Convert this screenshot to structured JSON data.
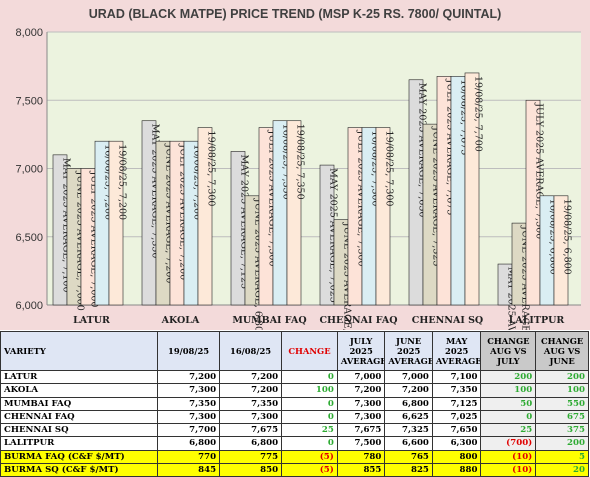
{
  "chart_data": {
    "type": "bar",
    "title": "URAD (BLACK MATPE) PRICE TREND (MSP K-25 RS. 7800/ QUINTAL)",
    "categories": [
      "LATUR",
      "AKOLA",
      "MUMBAI FAQ",
      "CHENNAI FAQ",
      "CHENNAI SQ",
      "LALITPUR"
    ],
    "ylim": [
      6000,
      8000
    ],
    "yticks": [
      "6,000",
      "6,500",
      "7,000",
      "7,500",
      "8,000"
    ],
    "ytick_values": [
      6000,
      6500,
      7000,
      7500,
      8000
    ],
    "grid": true,
    "series": [
      {
        "name": "MAY 2025 AVERAGE",
        "color": "#dcdcdc",
        "values": [
          7100,
          7350,
          7125,
          7025,
          7650,
          6300
        ]
      },
      {
        "name": "JUNE 2025 AVERAGE",
        "color": "#ddd9c4",
        "values": [
          7000,
          7200,
          6800,
          6625,
          7325,
          6600
        ]
      },
      {
        "name": "JULY 2025 AVERAGE",
        "color": "#fde3d8",
        "values": [
          7000,
          7200,
          7300,
          7300,
          7675,
          7500
        ]
      },
      {
        "name": "16/08/25",
        "color": "#daeef3",
        "values": [
          7200,
          7200,
          7350,
          7300,
          7675,
          6800
        ]
      },
      {
        "name": "19/08/25",
        "color": "#fde9d9",
        "values": [
          7200,
          7300,
          7350,
          7300,
          7700,
          6800
        ]
      }
    ],
    "bar_labels": [
      [
        "MAY 2025 AVERAGE, 7,100",
        "JUNE 2025 AVERAGE, 7,000",
        "JULY 2025 AVERAGE, 7,000",
        "16/08/25, 7,200",
        "19/08/25, 7,200"
      ],
      [
        "MAY 2025 AVERAGE, 7,350",
        "JUNE 2025 AVERAGE, 7,200",
        "JULY 2025 AVERAGE, 7,200",
        "16/08/25, 7,200",
        "19/08/25, 7,300"
      ],
      [
        "MAY 2025 AVERAGE, 7,125",
        "JUNE 2025 AVERAGE, 6,800",
        "JULY 2025 AVERAGE, 7,300",
        "16/08/25, 7,350",
        "19/08/25, 7,350"
      ],
      [
        "MAY 2025 AVERAGE, 7,025",
        "JUNE 2025 AVERAGE, 6,625",
        "JULY 2025 AVERAGE, 7,300",
        "16/08/25, 7,300",
        "19/08/25, 7,300"
      ],
      [
        "MAY 2025 AVERAGE, 7,650",
        "JUNE 2025 AVERAGE, 7,325",
        "JULY 2025 AVERAGE, 7,675",
        "16/08/25, 7,675",
        "19/08/25, 7,700"
      ],
      [
        "MAY 2025 AVERAGE, 6,300",
        "JUNE 2025 AVERAGE, 6,600",
        "JULY 2025 AVERAGE, 7,500",
        "16/08/25, 6,800",
        "19/08/25, 6,800"
      ]
    ],
    "colors": {
      "chart_bg": "#f3dada",
      "plot_bg": "#ecf3df",
      "grid": "#bdbdbd",
      "bar_border": "#222222"
    }
  },
  "table": {
    "headers": {
      "variety": "VARIETY",
      "d1": "19/08/25",
      "d2": "16/08/25",
      "change": "CHANGE",
      "july": "JULY 2025 AVERAGE",
      "june": "JUNE 2025 AVERAGE",
      "may": "MAY 2025 AVERAGE",
      "aug_july": "CHANGE AUG VS JULY",
      "aug_june": "CHANGE AUG VS JUNE"
    },
    "rows": [
      {
        "variety": "LATUR",
        "d1": "7,200",
        "d2": "7,200",
        "change": "0",
        "july": "7,000",
        "june": "7,000",
        "may": "7,100",
        "aug_july": "200",
        "aug_june": "200"
      },
      {
        "variety": "AKOLA",
        "d1": "7,300",
        "d2": "7,200",
        "change": "100",
        "july": "7,200",
        "june": "7,200",
        "may": "7,350",
        "aug_july": "100",
        "aug_june": "100"
      },
      {
        "variety": "MUMBAI FAQ",
        "d1": "7,350",
        "d2": "7,350",
        "change": "0",
        "july": "7,300",
        "june": "6,800",
        "may": "7,125",
        "aug_july": "50",
        "aug_june": "550"
      },
      {
        "variety": "CHENNAI FAQ",
        "d1": "7,300",
        "d2": "7,300",
        "change": "0",
        "july": "7,300",
        "june": "6,625",
        "may": "7,025",
        "aug_july": "0",
        "aug_june": "675"
      },
      {
        "variety": "CHENNAI SQ",
        "d1": "7,700",
        "d2": "7,675",
        "change": "25",
        "july": "7,675",
        "june": "7,325",
        "may": "7,650",
        "aug_july": "25",
        "aug_june": "375"
      },
      {
        "variety": "LALITPUR",
        "d1": "6,800",
        "d2": "6,800",
        "change": "0",
        "july": "7,500",
        "june": "6,600",
        "may": "6,300",
        "aug_july": "(700)",
        "aug_june": "200"
      },
      {
        "variety": "BURMA FAQ (C&F $/MT)",
        "d1": "770",
        "d2": "775",
        "change": "(5)",
        "july": "780",
        "june": "765",
        "may": "800",
        "aug_july": "(10)",
        "aug_june": "5"
      },
      {
        "variety": "BURMA SQ (C&F $/MT)",
        "d1": "845",
        "d2": "850",
        "change": "(5)",
        "july": "855",
        "june": "825",
        "may": "880",
        "aug_july": "(10)",
        "aug_june": "20"
      }
    ],
    "colors": {
      "header_bg": "#dfe6f4",
      "positive": "#2eab33",
      "negative": "#e00000",
      "highlight_row": "#ffff00",
      "aug_header_bg": "#c9c9c9"
    }
  }
}
